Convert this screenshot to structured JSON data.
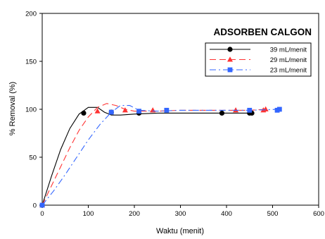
{
  "chart_data": {
    "type": "line",
    "title": "",
    "annotation": "ADSORBEN CALGON",
    "xlabel": "Waktu (menit)",
    "ylabel": "% Removal (%)",
    "xlim": [
      0,
      600
    ],
    "ylim": [
      0,
      200
    ],
    "xticks": [
      0,
      100,
      200,
      300,
      400,
      500,
      600
    ],
    "yticks": [
      0,
      50,
      100,
      150,
      200
    ],
    "grid": false,
    "legend_position": "top-right",
    "series": [
      {
        "name": "39 mL/menit",
        "color": "#000000",
        "marker": "circle",
        "line_style": "solid",
        "x": [
          0,
          90,
          150,
          210,
          390,
          450,
          455
        ],
        "y": [
          0,
          96,
          97,
          96,
          96,
          96,
          96
        ],
        "curve_x": [
          0,
          20,
          40,
          60,
          80,
          100,
          120,
          135,
          150,
          170,
          200,
          250,
          300,
          350,
          400,
          455
        ],
        "curve_y": [
          0,
          30,
          58,
          80,
          95,
          102,
          102,
          97,
          94,
          94,
          95,
          96,
          96,
          96,
          96,
          96
        ]
      },
      {
        "name": "29 mL/menit",
        "color": "#ff3333",
        "marker": "triangle",
        "line_style": "dashed",
        "x": [
          0,
          120,
          180,
          240,
          420,
          480,
          485
        ],
        "y": [
          0,
          98,
          99,
          99,
          99,
          99,
          100
        ],
        "curve_x": [
          0,
          20,
          40,
          60,
          80,
          100,
          120,
          140,
          160,
          180,
          200,
          250,
          300,
          350,
          400,
          450,
          485
        ],
        "curve_y": [
          0,
          20,
          40,
          60,
          78,
          92,
          102,
          106,
          104,
          100,
          98,
          98,
          99,
          99,
          99,
          99,
          100
        ]
      },
      {
        "name": "23 mL/menit",
        "color": "#3366ff",
        "marker": "square",
        "line_style": "dashdot",
        "x": [
          0,
          150,
          210,
          270,
          450,
          510,
          515
        ],
        "y": [
          0,
          97,
          98,
          99,
          99,
          99,
          100
        ],
        "curve_x": [
          0,
          25,
          50,
          75,
          100,
          125,
          150,
          170,
          190,
          210,
          250,
          300,
          350,
          400,
          450,
          515
        ],
        "curve_y": [
          0,
          15,
          32,
          50,
          68,
          84,
          97,
          104,
          104,
          99,
          98,
          99,
          99,
          99,
          99,
          100
        ]
      }
    ]
  }
}
